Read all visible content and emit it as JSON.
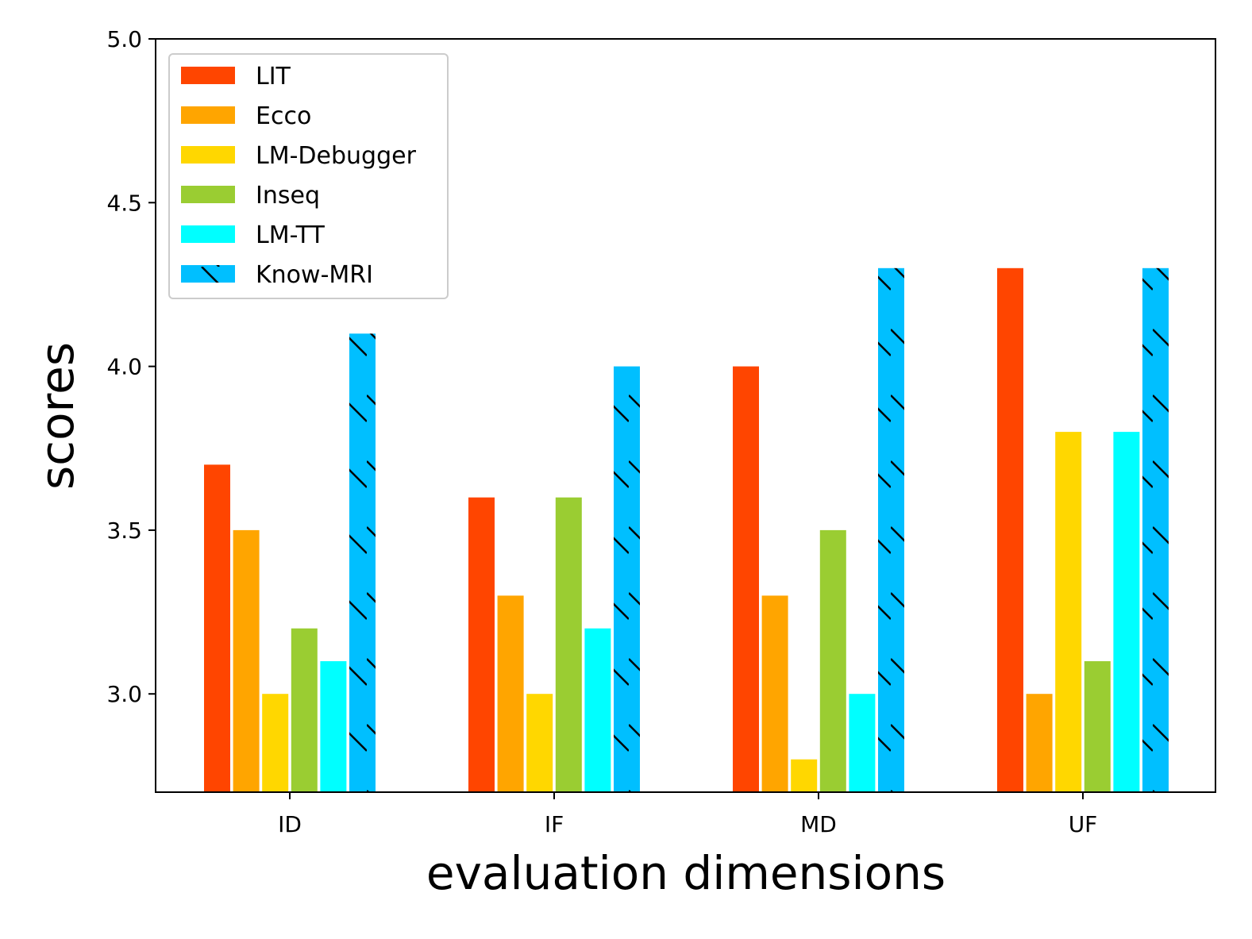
{
  "chart_data": {
    "type": "bar",
    "title": "",
    "xlabel": "evaluation dimensions",
    "ylabel": "scores",
    "categories": [
      "ID",
      "IF",
      "MD",
      "UF"
    ],
    "ylim": [
      2.7,
      5.0
    ],
    "yticks": [
      3.0,
      3.5,
      4.0,
      4.5,
      5.0
    ],
    "ytick_labels": [
      "3.0",
      "3.5",
      "4.0",
      "4.5",
      "5.0"
    ],
    "legend_position": "top-left",
    "grid": false,
    "series": [
      {
        "name": "LIT",
        "color": "#FF4500",
        "hatch": false,
        "values": [
          3.7,
          3.6,
          4.0,
          4.3
        ]
      },
      {
        "name": "Ecco",
        "color": "#FFA500",
        "hatch": false,
        "values": [
          3.5,
          3.3,
          3.3,
          3.0
        ]
      },
      {
        "name": "LM-Debugger",
        "color": "#FFD700",
        "hatch": false,
        "values": [
          3.0,
          3.0,
          2.8,
          3.8
        ]
      },
      {
        "name": "Inseq",
        "color": "#9ACD32",
        "hatch": false,
        "values": [
          3.2,
          3.6,
          3.5,
          3.1
        ]
      },
      {
        "name": "LM-TT",
        "color": "#00FFFF",
        "hatch": false,
        "values": [
          3.1,
          3.2,
          3.0,
          3.8
        ]
      },
      {
        "name": "Know-MRI",
        "color": "#00BFFF",
        "hatch": true,
        "values": [
          4.1,
          4.0,
          4.3,
          4.3
        ]
      }
    ]
  }
}
